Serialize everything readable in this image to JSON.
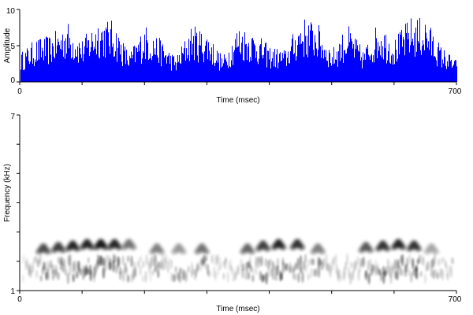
{
  "chart_data": [
    {
      "type": "bar",
      "xlabel": "Time (msec)",
      "ylabel": "Amplitude",
      "xlim": [
        0,
        700
      ],
      "ylim": [
        0,
        10
      ],
      "x_ticks": [
        0,
        700
      ],
      "x_tick_labels": [
        "0",
        "700"
      ],
      "y_ticks": [
        0,
        5,
        10
      ],
      "y_tick_labels": [
        "0",
        "5",
        "10"
      ],
      "grid": false,
      "color": "#0000ff",
      "x": [
        0,
        25,
        50,
        75,
        100,
        125,
        150,
        175,
        200,
        225,
        250,
        275,
        300,
        325,
        350,
        375,
        400,
        425,
        450,
        475,
        500,
        525,
        550,
        575,
        600,
        625,
        650,
        675,
        700
      ],
      "values": [
        4,
        6,
        6.5,
        8.5,
        6,
        9,
        8.5,
        4,
        8,
        6,
        3.5,
        8,
        7,
        3.5,
        8,
        7,
        5,
        4.5,
        9,
        8.5,
        4.5,
        8,
        4.5,
        8.5,
        6,
        9,
        9,
        5,
        3
      ]
    },
    {
      "type": "heatmap",
      "xlabel": "Time (msec)",
      "ylabel": "Frequency (kHz)",
      "xlim": [
        0,
        700
      ],
      "ylim": [
        1,
        7
      ],
      "x_ticks": [
        0,
        700
      ],
      "x_tick_labels": [
        "0",
        "700"
      ],
      "y_ticks": [
        1,
        7
      ],
      "y_tick_labels": [
        "1",
        "7"
      ],
      "grid": false,
      "colormap": "grayscale",
      "syllables": [
        {
          "t": 38,
          "f": 2.45,
          "intensity": 0.7
        },
        {
          "t": 62,
          "f": 2.5,
          "intensity": 0.75
        },
        {
          "t": 85,
          "f": 2.55,
          "intensity": 0.85
        },
        {
          "t": 108,
          "f": 2.6,
          "intensity": 0.85
        },
        {
          "t": 130,
          "f": 2.6,
          "intensity": 0.9
        },
        {
          "t": 152,
          "f": 2.6,
          "intensity": 0.85
        },
        {
          "t": 175,
          "f": 2.6,
          "intensity": 0.55
        },
        {
          "t": 220,
          "f": 2.45,
          "intensity": 0.5
        },
        {
          "t": 255,
          "f": 2.45,
          "intensity": 0.4
        },
        {
          "t": 292,
          "f": 2.45,
          "intensity": 0.55
        },
        {
          "t": 365,
          "f": 2.45,
          "intensity": 0.6
        },
        {
          "t": 390,
          "f": 2.55,
          "intensity": 0.75
        },
        {
          "t": 415,
          "f": 2.6,
          "intensity": 0.85
        },
        {
          "t": 445,
          "f": 2.6,
          "intensity": 0.8
        },
        {
          "t": 478,
          "f": 2.45,
          "intensity": 0.5
        },
        {
          "t": 555,
          "f": 2.5,
          "intensity": 0.65
        },
        {
          "t": 582,
          "f": 2.55,
          "intensity": 0.8
        },
        {
          "t": 607,
          "f": 2.6,
          "intensity": 0.85
        },
        {
          "t": 632,
          "f": 2.55,
          "intensity": 0.8
        },
        {
          "t": 660,
          "f": 2.45,
          "intensity": 0.35
        }
      ]
    }
  ]
}
